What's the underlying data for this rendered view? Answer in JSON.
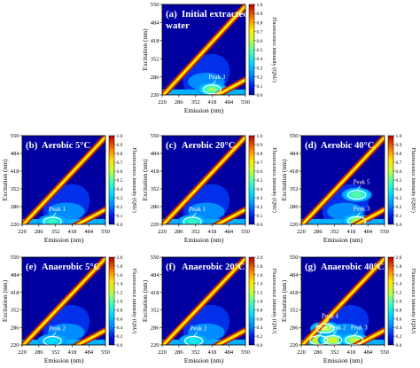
{
  "chart_data": [
    {
      "type": "heatmap",
      "panel": "a",
      "title": "(a)",
      "label": "Initial extracted water",
      "xlabel": "Emission (nm)",
      "ylabel": "Excitation (nm)",
      "xticks": [
        "220",
        "286",
        "352",
        "418",
        "484",
        "550"
      ],
      "yticks": [
        "220",
        "286",
        "352",
        "418",
        "484",
        "550"
      ],
      "xlim": [
        220,
        550
      ],
      "ylim": [
        220,
        550
      ],
      "colorbar_label": "Fluorescence intensity (QSU)",
      "colorbar_ticks": [
        "0.0",
        "0.1",
        "0.2",
        "0.3",
        "0.4",
        "0.5",
        "0.6",
        "0.7",
        "0.8",
        "0.9",
        "1.0"
      ],
      "zlim": [
        0,
        1.0
      ],
      "peaks": [
        {
          "name": "Peak 3",
          "emission": 418,
          "excitation": 240,
          "intensity": 0.55
        }
      ]
    },
    {
      "type": "heatmap",
      "panel": "b",
      "title": "(b)",
      "label": "Aerobic 5°C",
      "xlabel": "Emission (nm)",
      "ylabel": "Excitation (nm)",
      "xticks": [
        "220",
        "286",
        "352",
        "418",
        "484",
        "550"
      ],
      "yticks": [
        "220",
        "286",
        "352",
        "418",
        "484",
        "550"
      ],
      "xlim": [
        220,
        550
      ],
      "ylim": [
        220,
        550
      ],
      "colorbar_label": "Fluorescence intensity (QSU)",
      "colorbar_ticks": [
        "0.0",
        "0.1",
        "0.2",
        "0.3",
        "0.4",
        "0.5",
        "0.6",
        "0.7",
        "0.8",
        "0.9",
        "1.0"
      ],
      "zlim": [
        0,
        1.0
      ],
      "peaks": [
        {
          "name": "Peak 1",
          "emission": 340,
          "excitation": 230,
          "intensity": 0.45
        }
      ]
    },
    {
      "type": "heatmap",
      "panel": "c",
      "title": "(c)",
      "label": "Aerobic 20°C",
      "xlabel": "Emission (nm)",
      "ylabel": "Excitation (nm)",
      "xticks": [
        "220",
        "286",
        "352",
        "418",
        "484",
        "550"
      ],
      "yticks": [
        "220",
        "286",
        "352",
        "418",
        "484",
        "550"
      ],
      "xlim": [
        220,
        550
      ],
      "ylim": [
        220,
        550
      ],
      "colorbar_label": "Fluorescence intensity (QSU)",
      "colorbar_ticks": [
        "0.0",
        "0.1",
        "0.2",
        "0.3",
        "0.4",
        "0.5",
        "0.6",
        "0.7",
        "0.8",
        "0.9",
        "1.0"
      ],
      "zlim": [
        0,
        1.0
      ],
      "peaks": [
        {
          "name": "Peak 1",
          "emission": 340,
          "excitation": 230,
          "intensity": 0.45
        }
      ]
    },
    {
      "type": "heatmap",
      "panel": "d",
      "title": "(d)",
      "label": "Aerobic 40°C",
      "xlabel": "Emission (nm)",
      "ylabel": "Excitation (nm)",
      "xticks": [
        "220",
        "286",
        "352",
        "418",
        "484",
        "550"
      ],
      "yticks": [
        "220",
        "286",
        "352",
        "418",
        "484",
        "550"
      ],
      "xlim": [
        220,
        550
      ],
      "ylim": [
        220,
        550
      ],
      "colorbar_label": "Fluorescence intensity (QSU)",
      "colorbar_ticks": [
        "0.0",
        "0.1",
        "0.2",
        "0.3",
        "0.4",
        "0.5",
        "0.6",
        "0.7",
        "0.8",
        "0.9",
        "1.0"
      ],
      "zlim": [
        0,
        1.0
      ],
      "peaks": [
        {
          "name": "Peak 5",
          "emission": 440,
          "excitation": 330,
          "intensity": 0.5
        },
        {
          "name": "Peak 3",
          "emission": 440,
          "excitation": 232,
          "intensity": 0.6
        }
      ]
    },
    {
      "type": "heatmap",
      "panel": "e",
      "title": "(e)",
      "label": "Anaerobic 5°C",
      "xlabel": "Emission (nm)",
      "ylabel": "Excitation (nm)",
      "xticks": [
        "220",
        "286",
        "352",
        "418",
        "484",
        "550"
      ],
      "yticks": [
        "220",
        "286",
        "352",
        "418",
        "484",
        "550"
      ],
      "xlim": [
        220,
        550
      ],
      "ylim": [
        220,
        550
      ],
      "colorbar_label": "Fluorescence intensity (QSU)",
      "colorbar_ticks": [
        "0.0",
        "0.2",
        "0.4",
        "0.6",
        "0.8",
        "1.0",
        "1.2",
        "1.4",
        "1.6",
        "1.8",
        "2.0"
      ],
      "zlim": [
        0,
        2.0
      ],
      "peaks": [
        {
          "name": "Peak 2",
          "emission": 340,
          "excitation": 235,
          "intensity": 0.7
        }
      ]
    },
    {
      "type": "heatmap",
      "panel": "f",
      "title": "(f)",
      "label": "Anaerobic 20°C",
      "xlabel": "Emission (nm)",
      "ylabel": "Excitation (nm)",
      "xticks": [
        "220",
        "286",
        "352",
        "418",
        "484",
        "550"
      ],
      "yticks": [
        "220",
        "286",
        "352",
        "418",
        "484",
        "550"
      ],
      "xlim": [
        220,
        550
      ],
      "ylim": [
        220,
        550
      ],
      "colorbar_label": "Fluorescence intensity (QSU)",
      "colorbar_ticks": [
        "0.0",
        "0.2",
        "0.4",
        "0.6",
        "0.8",
        "1.0",
        "1.2",
        "1.4",
        "1.6",
        "1.8",
        "2.0"
      ],
      "zlim": [
        0,
        2.0
      ],
      "peaks": [
        {
          "name": "Peak 2",
          "emission": 345,
          "excitation": 235,
          "intensity": 0.8
        }
      ]
    },
    {
      "type": "heatmap",
      "panel": "g",
      "title": "(g)",
      "label": "Anaerobic 40°C",
      "xlabel": "Emission (nm)",
      "ylabel": "Excitation (nm)",
      "xticks": [
        "220",
        "286",
        "352",
        "418",
        "484",
        "550"
      ],
      "yticks": [
        "220",
        "286",
        "352",
        "418",
        "484",
        "550"
      ],
      "xlim": [
        220,
        550
      ],
      "ylim": [
        220,
        550
      ],
      "colorbar_label": "Fluorescence intensity (QSU)",
      "colorbar_ticks": [
        "0.0",
        "0.2",
        "0.4",
        "0.6",
        "0.8",
        "1.0",
        "1.2",
        "1.4",
        "1.6",
        "1.8",
        "2.0"
      ],
      "zlim": [
        0,
        2.0
      ],
      "peaks": [
        {
          "name": "Peak 4",
          "emission": 315,
          "excitation": 282,
          "intensity": 1.2
        },
        {
          "name": "Peak 1",
          "emission": 290,
          "excitation": 238,
          "intensity": 1.4
        },
        {
          "name": "Peak 2",
          "emission": 345,
          "excitation": 238,
          "intensity": 1.3
        },
        {
          "name": "Peak 3",
          "emission": 430,
          "excitation": 238,
          "intensity": 1.2
        }
      ]
    }
  ]
}
